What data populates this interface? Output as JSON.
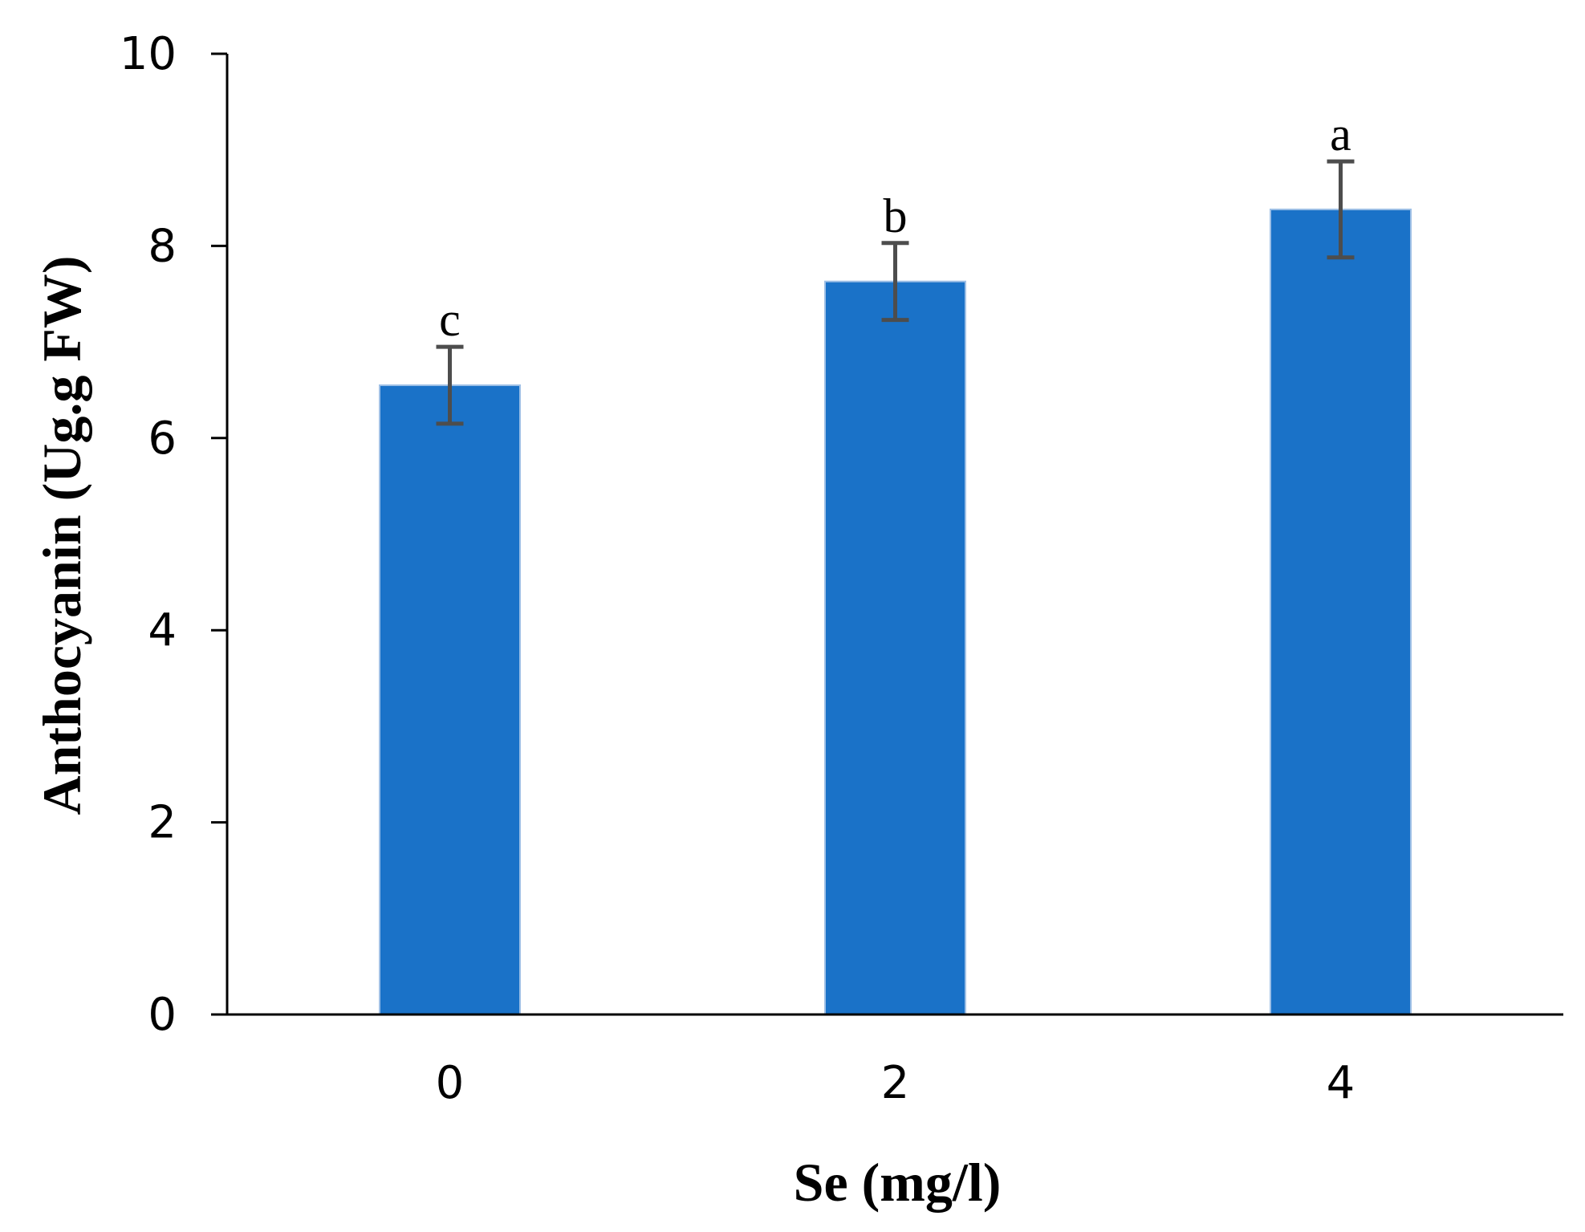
{
  "chart_data": {
    "type": "bar",
    "categories": [
      "0",
      "2",
      "4"
    ],
    "values": [
      6.55,
      7.63,
      8.38
    ],
    "errors": [
      0.4,
      0.4,
      0.5
    ],
    "significance_labels": [
      "c",
      "b",
      "a"
    ],
    "xlabel": "Se (mg/l)",
    "ylabel": "Anthocyanin (Ug.g FW)",
    "ylim": [
      0,
      10
    ],
    "yticks": [
      "0",
      "2",
      "4",
      "6",
      "8",
      "10"
    ],
    "grid": false,
    "legend": "none",
    "bar_color": "#1a72c8",
    "error_bar_color": "#4d4d4d"
  }
}
